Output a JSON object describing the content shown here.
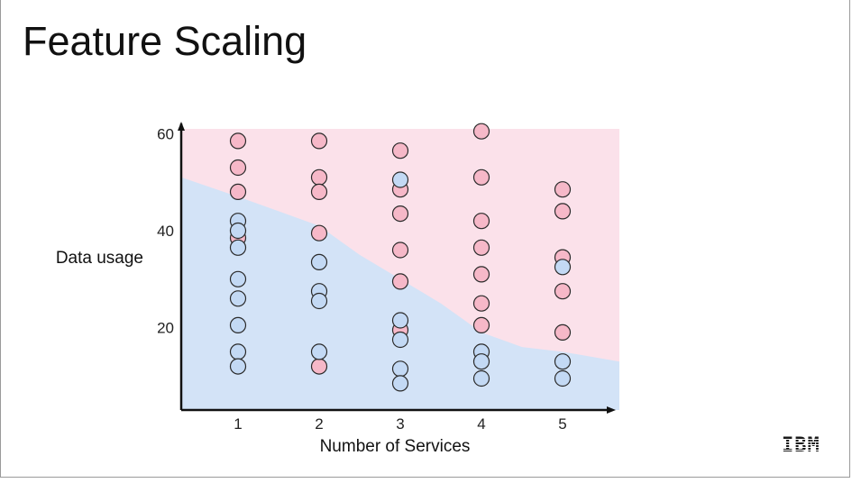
{
  "slide": {
    "title": "Feature Scaling",
    "logo_text": "IBM"
  },
  "colors": {
    "region_pink": "#fbe1ea",
    "region_blue": "#d3e3f7",
    "point_pink": "#f6b8c8",
    "point_blue": "#c3d9f4",
    "point_stroke": "#2a2a2a",
    "axis": "#111111"
  },
  "chart_data": {
    "type": "scatter",
    "xlabel": "Number of Services",
    "ylabel": "Data usage",
    "x_ticks": [
      1,
      2,
      3,
      4,
      5
    ],
    "y_ticks": [
      20,
      40,
      60
    ],
    "xlim": [
      0.3,
      5.7
    ],
    "ylim": [
      3,
      61
    ],
    "grid": false,
    "legend": "none",
    "series": [
      {
        "class": "pink",
        "points": [
          [
            1,
            58.5
          ],
          [
            1,
            53
          ],
          [
            1,
            48
          ],
          [
            1,
            38.5
          ],
          [
            2,
            58.5
          ],
          [
            2,
            51
          ],
          [
            2,
            48
          ],
          [
            2,
            39.5
          ],
          [
            2,
            12
          ],
          [
            3,
            56.5
          ],
          [
            3,
            48.5
          ],
          [
            3,
            43.5
          ],
          [
            3,
            36
          ],
          [
            3,
            29.5
          ],
          [
            3,
            19.5
          ],
          [
            4,
            60.5
          ],
          [
            4,
            51
          ],
          [
            4,
            42
          ],
          [
            4,
            36.5
          ],
          [
            4,
            31
          ],
          [
            4,
            25
          ],
          [
            4,
            20.5
          ],
          [
            5,
            48.5
          ],
          [
            5,
            44
          ],
          [
            5,
            34.5
          ],
          [
            5,
            27.5
          ],
          [
            5,
            19
          ]
        ]
      },
      {
        "class": "blue",
        "points": [
          [
            1,
            42
          ],
          [
            1,
            40
          ],
          [
            1,
            36.5
          ],
          [
            1,
            30
          ],
          [
            1,
            26
          ],
          [
            1,
            20.5
          ],
          [
            1,
            15
          ],
          [
            1,
            12
          ],
          [
            2,
            33.5
          ],
          [
            2,
            27.5
          ],
          [
            2,
            25.5
          ],
          [
            2,
            15
          ],
          [
            3,
            50.5
          ],
          [
            3,
            21.5
          ],
          [
            3,
            17.5
          ],
          [
            3,
            11.5
          ],
          [
            3,
            8.5
          ],
          [
            4,
            15
          ],
          [
            4,
            13
          ],
          [
            4,
            9.5
          ],
          [
            5,
            32.5
          ],
          [
            5,
            13
          ],
          [
            5,
            9.5
          ]
        ]
      }
    ],
    "decision_boundary": [
      [
        0.3,
        51
      ],
      [
        1,
        47
      ],
      [
        1.5,
        44
      ],
      [
        2,
        41
      ],
      [
        2.5,
        35
      ],
      [
        2.8,
        32
      ],
      [
        3,
        30
      ],
      [
        3.3,
        27
      ],
      [
        3.5,
        25
      ],
      [
        4,
        19
      ],
      [
        4.5,
        16
      ],
      [
        5,
        15
      ],
      [
        5.7,
        13
      ]
    ]
  }
}
